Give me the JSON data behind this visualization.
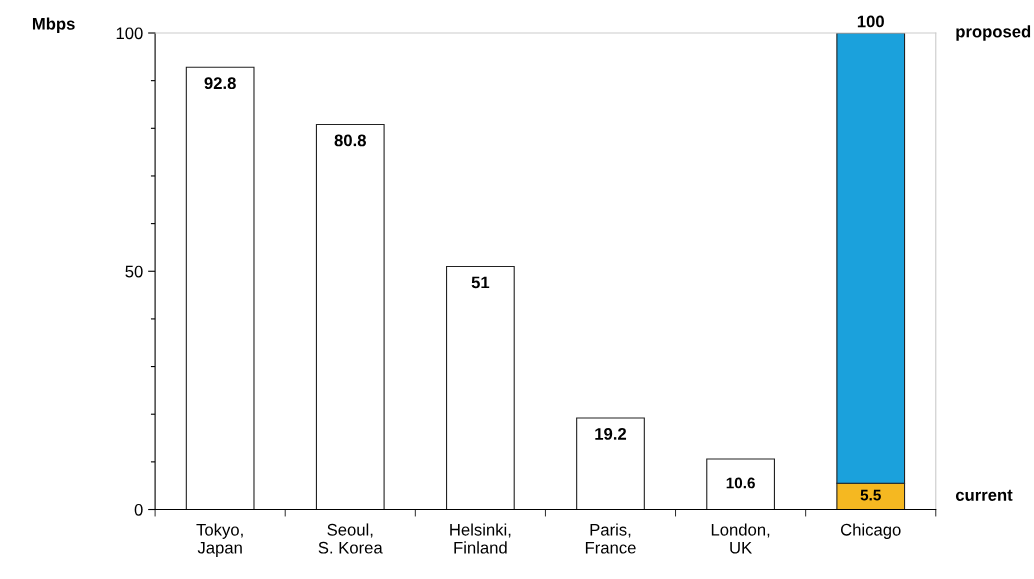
{
  "chart_data": {
    "type": "bar",
    "stacked": true,
    "ylabel": "Mbps",
    "categories": [
      "Tokyo,\nJapan",
      "Seoul,\nS. Korea",
      "Helsinki,\nFinland",
      "Paris,\nFrance",
      "London,\nUK",
      "Chicago"
    ],
    "series": [
      {
        "color": "#ffffff",
        "values": [
          92.8,
          80.8,
          51,
          19.2,
          10.6,
          null
        ],
        "value_labels": [
          "92.8",
          "80.8",
          "51",
          "19.2",
          "10.6",
          null
        ]
      },
      {
        "name": "current",
        "color": "#f5b821",
        "values": [
          null,
          null,
          null,
          null,
          null,
          5.5
        ],
        "value_labels": [
          null,
          null,
          null,
          null,
          null,
          "5.5"
        ]
      },
      {
        "name": "proposed",
        "color": "#1ba1dc",
        "values": [
          null,
          null,
          null,
          null,
          null,
          94.5
        ]
      }
    ],
    "totals": [
      null,
      null,
      null,
      null,
      null,
      "100"
    ],
    "ylim": [
      0,
      100
    ],
    "yticks": [
      0,
      {
        "value": 10,
        "label": null
      },
      {
        "value": 20,
        "label": null
      },
      {
        "value": 30,
        "label": null
      },
      {
        "value": 40,
        "label": null
      },
      50,
      {
        "value": 60,
        "label": null
      },
      {
        "value": 70,
        "label": null
      },
      {
        "value": 80,
        "label": null
      },
      {
        "value": 90,
        "label": null
      },
      100
    ],
    "grid": false,
    "legend": false
  }
}
